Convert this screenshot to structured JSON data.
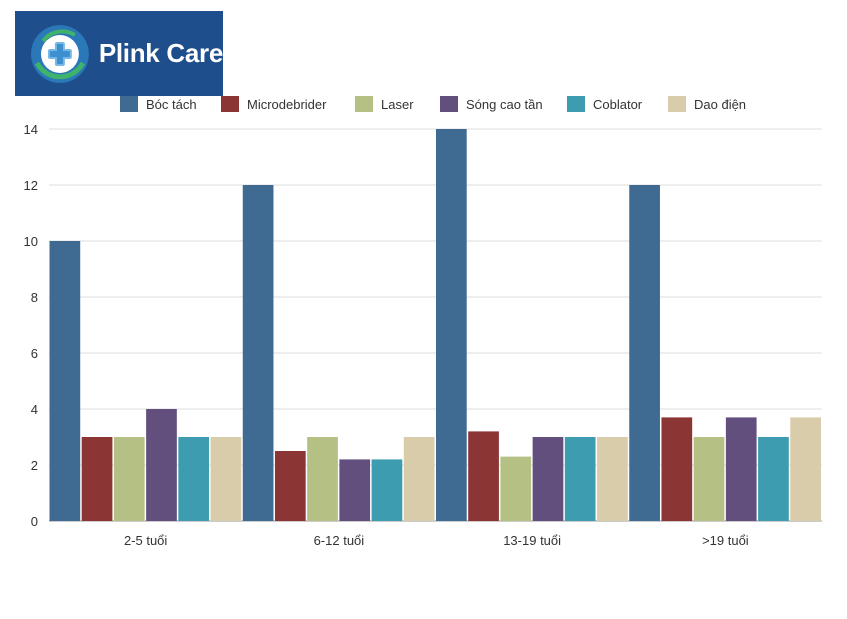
{
  "brand": {
    "name": "Plink Care",
    "color": "#1f4e8c"
  },
  "chart_data": {
    "type": "bar",
    "title": "",
    "xlabel": "",
    "ylabel": "",
    "ylim": [
      0,
      14
    ],
    "yticks": [
      0,
      2,
      4,
      6,
      8,
      10,
      12,
      14
    ],
    "grid": true,
    "legend_position": "top",
    "categories": [
      "2-5 tuổi",
      "6-12 tuổi",
      "13-19 tuổi",
      ">19 tuổi"
    ],
    "series": [
      {
        "name": "Bóc tách",
        "color": "#3f6b93",
        "values": [
          10,
          12,
          14,
          12
        ]
      },
      {
        "name": "Microdebrider",
        "color": "#8b3535",
        "values": [
          3,
          2.5,
          3.2,
          3.7
        ]
      },
      {
        "name": "Laser",
        "color": "#b5c184",
        "values": [
          3,
          3,
          2.3,
          3
        ]
      },
      {
        "name": "Sóng cao tần",
        "color": "#624f7d",
        "values": [
          4,
          2.2,
          3,
          3.7
        ]
      },
      {
        "name": "Coblator",
        "color": "#3e9cb1",
        "values": [
          3,
          2.2,
          3,
          3
        ]
      },
      {
        "name": "Dao điện",
        "color": "#d9ccaa",
        "values": [
          3,
          3,
          3,
          3.7
        ]
      }
    ]
  }
}
